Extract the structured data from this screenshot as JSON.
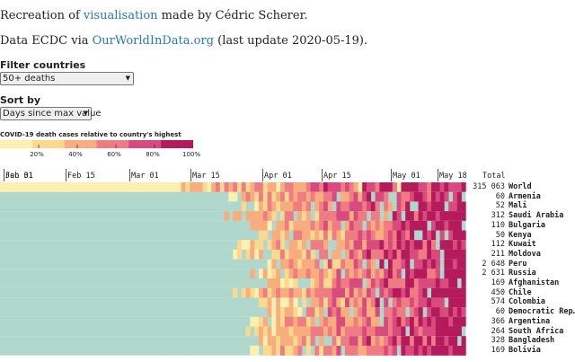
{
  "header": {
    "line1_prefix": "Recreation of ",
    "line1_link": "visualisation",
    "line1_suffix": " made by Cédric Scherer.",
    "line2_prefix": "Data ECDC via ",
    "line2_link": "OurWorldInData.org",
    "line2_suffix": " (last update 2020-05-19)."
  },
  "filter": {
    "label": "Filter countries",
    "value": "50+ deaths"
  },
  "sort": {
    "label": "Sort by",
    "value": "Days since max value"
  },
  "legend": {
    "title": "COVID-19 death cases relative to country's highest",
    "ticks": [
      "20%",
      "40%",
      "60%",
      "80%",
      "100%"
    ],
    "colors": [
      "#fdf0b0",
      "#fdd98d",
      "#f8ad7f",
      "#ef7b83",
      "#d94a7d",
      "#b51a5c"
    ]
  },
  "colors": {
    "no_data": "#afd7cc",
    "accent_link": "#2a77b4",
    "grid_line": "#555555"
  },
  "axis": {
    "ticks": [
      "Jan 31",
      "Feb 01",
      "Feb 15",
      "Mar 01",
      "Mar 15",
      "Apr 01",
      "Apr 15",
      "May 01",
      "May 18"
    ],
    "total_label": "Total"
  },
  "rows": [
    {
      "total": "315 063",
      "country": "World"
    },
    {
      "total": "60",
      "country": "Armenia"
    },
    {
      "total": "52",
      "country": "Mali"
    },
    {
      "total": "312",
      "country": "Saudi Arabia"
    },
    {
      "total": "110",
      "country": "Bulgaria"
    },
    {
      "total": "50",
      "country": "Kenya"
    },
    {
      "total": "112",
      "country": "Kuwait"
    },
    {
      "total": "211",
      "country": "Moldova"
    },
    {
      "total": "2 648",
      "country": "Peru"
    },
    {
      "total": "2 631",
      "country": "Russia"
    },
    {
      "total": "169",
      "country": "Afghanistan"
    },
    {
      "total": "450",
      "country": "Chile"
    },
    {
      "total": "574",
      "country": "Colombia"
    },
    {
      "total": "60",
      "country": "Democratic Rep…"
    },
    {
      "total": "366",
      "country": "Argentina"
    },
    {
      "total": "264",
      "country": "South Africa"
    },
    {
      "total": "328",
      "country": "Bangladesh"
    },
    {
      "total": "169",
      "country": "Bolivia"
    }
  ]
}
